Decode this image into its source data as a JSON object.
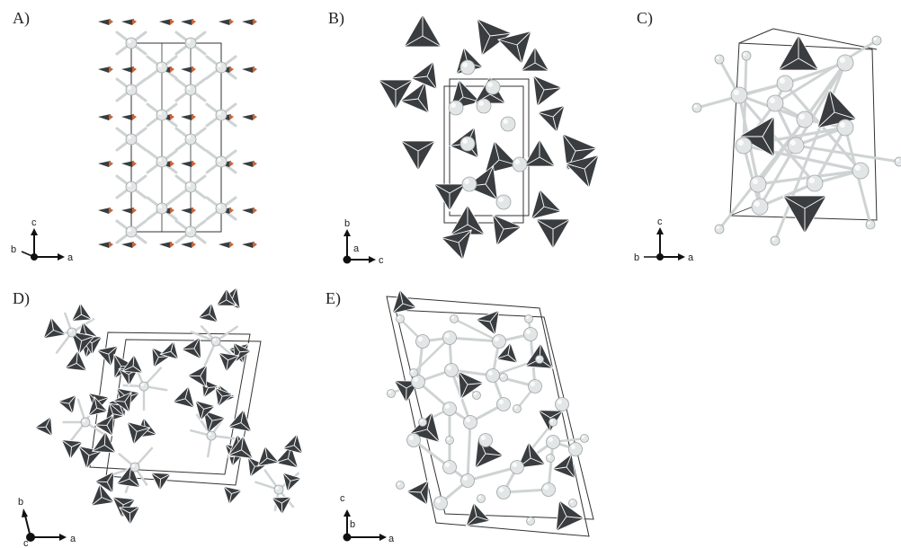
{
  "panels": [
    {
      "id": "A",
      "label": "A)",
      "axes": {
        "up": "c",
        "right": "a",
        "dot": "b"
      }
    },
    {
      "id": "B",
      "label": "B)",
      "axes": {
        "up": "b",
        "right": "c",
        "dot": "a"
      }
    },
    {
      "id": "C",
      "label": "C)",
      "axes": {
        "up": "c",
        "right": "a",
        "dot": "b"
      }
    },
    {
      "id": "D",
      "label": "D)",
      "axes": {
        "up": "b",
        "right": "a",
        "dot": "c"
      }
    },
    {
      "id": "E",
      "label": "E)",
      "axes": {
        "up": "c",
        "right": "a",
        "dot": "b"
      }
    }
  ],
  "colors": {
    "tetrahedron": "#3a3d40",
    "atom": "#e3e6e6",
    "bond": "#cfd3d3",
    "cell": "#333333",
    "accent": "#c8643a"
  }
}
